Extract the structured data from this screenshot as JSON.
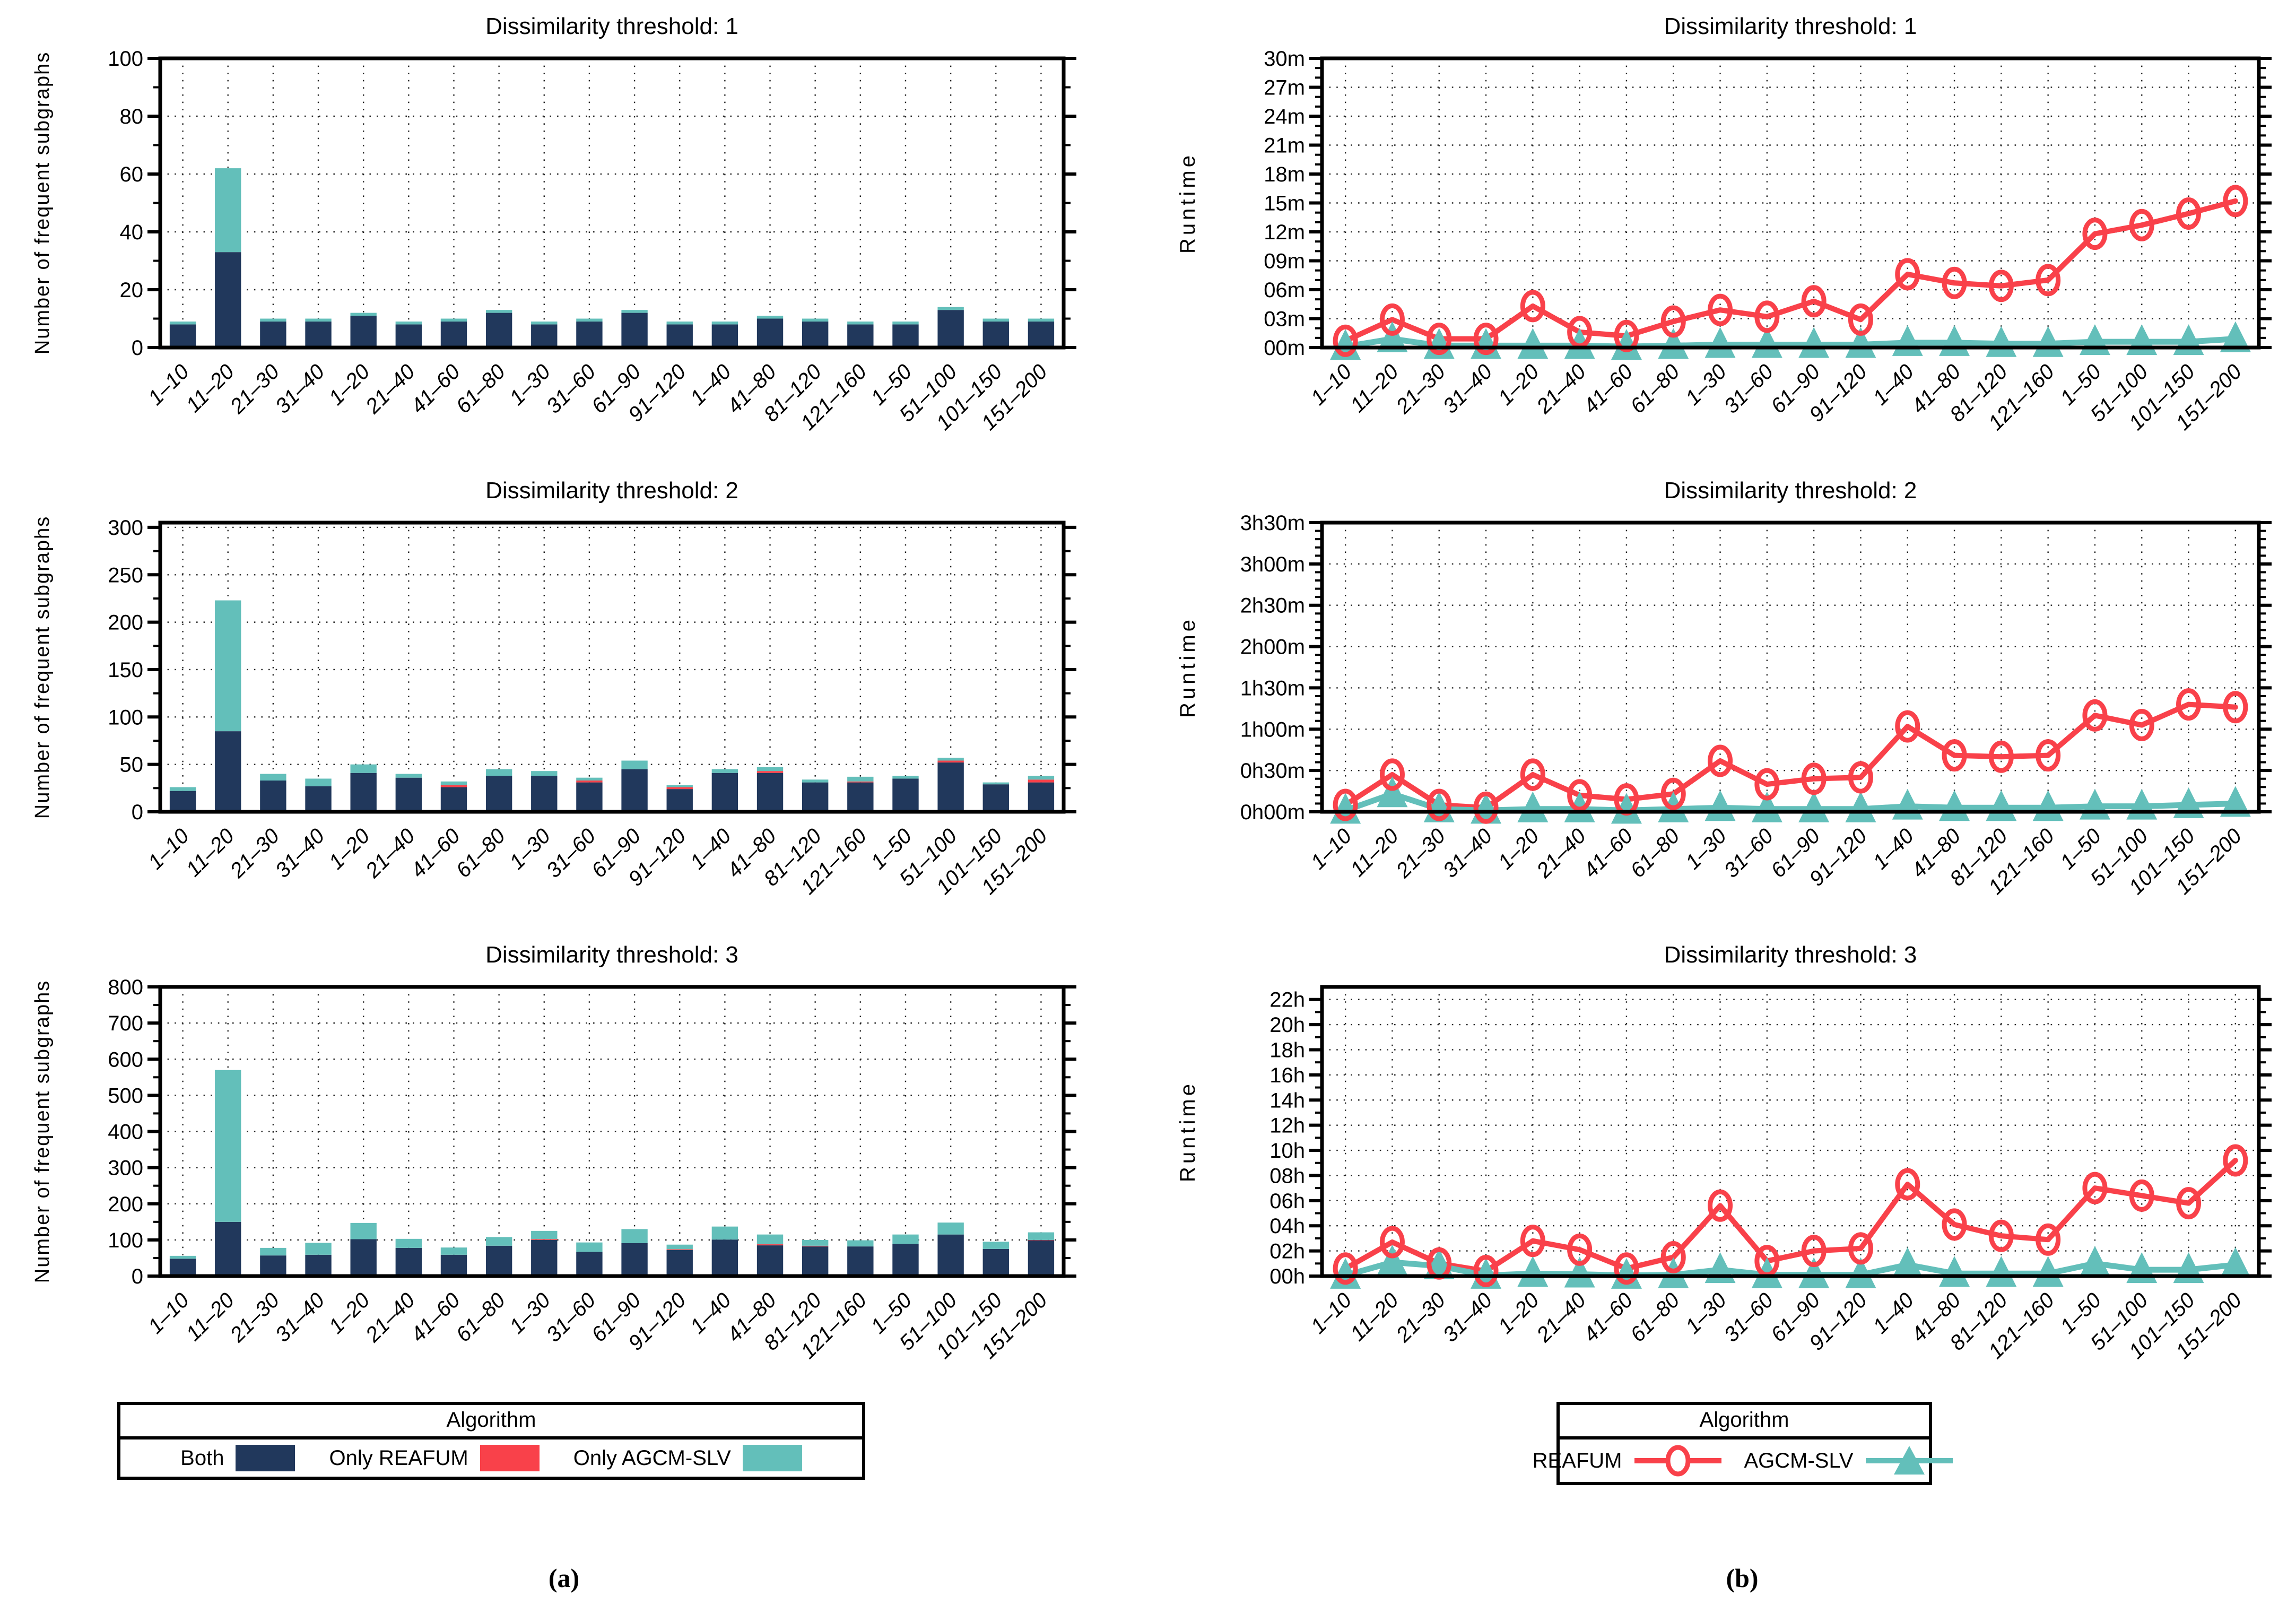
{
  "figure": {
    "panel_a_label": "(a)",
    "panel_b_label": "(b)"
  },
  "colors": {
    "both": "#21385c",
    "only_reafum": "#f9414a",
    "only_agcm_slv": "#63bfba",
    "axis": "#000000"
  },
  "legend_a": {
    "title": "Algorithm",
    "items": [
      {
        "label": "Both",
        "color": "#21385c"
      },
      {
        "label": "Only REAFUM",
        "color": "#f9414a"
      },
      {
        "label": "Only AGCM-SLV",
        "color": "#63bfba"
      }
    ]
  },
  "legend_b": {
    "title": "Algorithm",
    "items": [
      {
        "label": "REAFUM",
        "color": "#f9414a",
        "marker": "circle"
      },
      {
        "label": "AGCM-SLV",
        "color": "#63bfba",
        "marker": "triangle"
      }
    ]
  },
  "chart_data": [
    {
      "type": "stacked-bar",
      "title": "Dissimilarity threshold: 1",
      "ylabel": "Number of frequent subgraphs",
      "ylim": [
        0,
        100
      ],
      "yticks": [
        0,
        20,
        40,
        60,
        80,
        100
      ],
      "ytick_labels": [
        "0",
        "20",
        "40",
        "60",
        "80",
        "100"
      ],
      "yminor": 10,
      "grid": true,
      "categories": [
        "1–10",
        "11–20",
        "21–30",
        "31–40",
        "1–20",
        "21–40",
        "41–60",
        "61–80",
        "1–30",
        "31–60",
        "61–90",
        "91–120",
        "1–40",
        "41–80",
        "81–120",
        "121–160",
        "1–50",
        "51–100",
        "101–150",
        "151–200"
      ],
      "series": [
        {
          "name": "Both",
          "color": "#21385c",
          "values": [
            8,
            33,
            9,
            9,
            11,
            8,
            9,
            12,
            8,
            9,
            12,
            8,
            8,
            10,
            9,
            8,
            8,
            13,
            9,
            9
          ]
        },
        {
          "name": "Only REAFUM",
          "color": "#f9414a",
          "values": [
            0,
            0,
            0,
            0,
            0,
            0,
            0,
            0,
            0,
            0,
            0,
            0,
            0,
            0,
            0,
            0,
            0,
            0,
            0,
            0
          ]
        },
        {
          "name": "Only AGCM-SLV",
          "color": "#63bfba",
          "values": [
            1,
            29,
            1,
            1,
            1,
            1,
            1,
            1,
            1,
            1,
            1,
            1,
            1,
            1,
            1,
            1,
            1,
            1,
            1,
            1
          ]
        }
      ]
    },
    {
      "type": "stacked-bar",
      "title": "Dissimilarity threshold: 2",
      "ylabel": "Number of frequent subgraphs",
      "ylim": [
        0,
        305
      ],
      "yticks": [
        0,
        50,
        100,
        150,
        200,
        250,
        300
      ],
      "ytick_labels": [
        "0",
        "50",
        "100",
        "150",
        "200",
        "250",
        "300"
      ],
      "yminor": 25,
      "grid": true,
      "categories": [
        "1–10",
        "11–20",
        "21–30",
        "31–40",
        "1–20",
        "21–40",
        "41–60",
        "61–80",
        "1–30",
        "31–60",
        "61–90",
        "91–120",
        "1–40",
        "41–80",
        "81–120",
        "121–160",
        "1–50",
        "51–100",
        "101–150",
        "151–200"
      ],
      "series": [
        {
          "name": "Both",
          "color": "#21385c",
          "values": [
            22,
            85,
            33,
            27,
            41,
            36,
            26,
            38,
            38,
            31,
            45,
            24,
            41,
            41,
            31,
            31,
            35,
            52,
            29,
            31
          ]
        },
        {
          "name": "Only REAFUM",
          "color": "#f9414a",
          "values": [
            0,
            0,
            0,
            0,
            0,
            0,
            2,
            0,
            0,
            2,
            0,
            2,
            0,
            2,
            0,
            1,
            0,
            2,
            0,
            3
          ]
        },
        {
          "name": "Only AGCM-SLV",
          "color": "#63bfba",
          "values": [
            4,
            138,
            7,
            8,
            9,
            4,
            4,
            7,
            5,
            3,
            9,
            2,
            4,
            4,
            3,
            5,
            3,
            3,
            2,
            4
          ]
        }
      ]
    },
    {
      "type": "stacked-bar",
      "title": "Dissimilarity threshold: 3",
      "ylabel": "Number of frequent subgraphs",
      "ylim": [
        0,
        800
      ],
      "yticks": [
        0,
        100,
        200,
        300,
        400,
        500,
        600,
        700,
        800
      ],
      "ytick_labels": [
        "0",
        "100",
        "200",
        "300",
        "400",
        "500",
        "600",
        "700",
        "800"
      ],
      "yminor": 50,
      "grid": true,
      "categories": [
        "1–10",
        "11–20",
        "21–30",
        "31–40",
        "1–20",
        "21–40",
        "41–60",
        "61–80",
        "1–30",
        "31–60",
        "61–90",
        "91–120",
        "1–40",
        "41–80",
        "81–120",
        "121–160",
        "1–50",
        "51–100",
        "101–150",
        "151–200"
      ],
      "series": [
        {
          "name": "Both",
          "color": "#21385c",
          "values": [
            48,
            150,
            57,
            59,
            102,
            78,
            59,
            84,
            100,
            67,
            91,
            72,
            101,
            85,
            82,
            82,
            89,
            115,
            75,
            99
          ]
        },
        {
          "name": "Only REAFUM",
          "color": "#f9414a",
          "values": [
            0,
            0,
            0,
            0,
            0,
            0,
            0,
            0,
            2,
            0,
            0,
            2,
            0,
            3,
            2,
            0,
            0,
            0,
            0,
            1
          ]
        },
        {
          "name": "Only AGCM-SLV",
          "color": "#63bfba",
          "values": [
            8,
            420,
            21,
            33,
            45,
            25,
            20,
            24,
            23,
            26,
            39,
            13,
            36,
            27,
            16,
            17,
            26,
            33,
            20,
            21
          ]
        }
      ]
    },
    {
      "type": "line",
      "title": "Dissimilarity threshold: 1",
      "ylabel": "Runtime",
      "y_unit": "minutes",
      "ylim": [
        0,
        30
      ],
      "yticks": [
        0,
        3,
        6,
        9,
        12,
        15,
        18,
        21,
        24,
        27,
        30
      ],
      "ytick_labels": [
        "00m",
        "03m",
        "06m",
        "09m",
        "12m",
        "15m",
        "18m",
        "21m",
        "24m",
        "27m",
        "30m"
      ],
      "yminor": 1,
      "grid": true,
      "categories": [
        "1–10",
        "11–20",
        "21–30",
        "31–40",
        "1–20",
        "21–40",
        "41–60",
        "61–80",
        "1–30",
        "31–60",
        "61–90",
        "91–120",
        "1–40",
        "41–80",
        "81–120",
        "121–160",
        "1–50",
        "51–100",
        "101–150",
        "151–200"
      ],
      "series": [
        {
          "name": "REAFUM",
          "color": "#f9414a",
          "marker": "circle",
          "values": [
            0.7,
            2.9,
            0.9,
            0.9,
            4.3,
            1.6,
            1.2,
            2.7,
            3.9,
            3.2,
            4.8,
            2.9,
            7.6,
            6.7,
            6.4,
            7.0,
            11.8,
            12.7,
            13.9,
            15.2
          ]
        },
        {
          "name": "AGCM-SLV",
          "color": "#63bfba",
          "marker": "triangle",
          "values": [
            0.1,
            0.9,
            0.2,
            0.2,
            0.2,
            0.2,
            0.1,
            0.2,
            0.3,
            0.3,
            0.3,
            0.3,
            0.5,
            0.5,
            0.4,
            0.4,
            0.6,
            0.6,
            0.6,
            0.9
          ]
        }
      ]
    },
    {
      "type": "line",
      "title": "Dissimilarity threshold: 2",
      "ylabel": "Runtime",
      "y_unit": "minutes",
      "ylim": [
        0,
        210
      ],
      "yticks": [
        0,
        30,
        60,
        90,
        120,
        150,
        180,
        210
      ],
      "ytick_labels": [
        "0h00m",
        "0h30m",
        "1h00m",
        "1h30m",
        "2h00m",
        "2h30m",
        "3h00m",
        "3h30m"
      ],
      "yminor": 6,
      "grid": true,
      "categories": [
        "1–10",
        "11–20",
        "21–30",
        "31–40",
        "1–20",
        "21–40",
        "41–60",
        "61–80",
        "1–30",
        "31–60",
        "61–90",
        "91–120",
        "1–40",
        "41–80",
        "81–120",
        "121–160",
        "1–50",
        "51–100",
        "101–150",
        "151–200"
      ],
      "series": [
        {
          "name": "REAFUM",
          "color": "#f9414a",
          "marker": "circle",
          "values": [
            5,
            27,
            5,
            3,
            27,
            12,
            9,
            13,
            37,
            20,
            24,
            25,
            62,
            41,
            40,
            41,
            70,
            63,
            78,
            76
          ]
        },
        {
          "name": "AGCM-SLV",
          "color": "#63bfba",
          "marker": "triangle",
          "values": [
            1,
            13,
            2,
            1,
            2,
            2,
            1,
            2,
            3,
            2,
            2,
            2,
            4,
            3,
            3,
            3,
            4,
            4,
            5,
            6
          ]
        }
      ]
    },
    {
      "type": "line",
      "title": "Dissimilarity threshold: 3",
      "ylabel": "Runtime",
      "y_unit": "hours",
      "ylim": [
        0,
        23
      ],
      "yticks": [
        0,
        2,
        4,
        6,
        8,
        10,
        12,
        14,
        16,
        18,
        20,
        22
      ],
      "ytick_labels": [
        "00h",
        "02h",
        "04h",
        "06h",
        "08h",
        "10h",
        "12h",
        "14h",
        "16h",
        "18h",
        "20h",
        "22h"
      ],
      "yminor": 1,
      "grid": true,
      "categories": [
        "1–10",
        "11–20",
        "21–30",
        "31–40",
        "1–20",
        "21–40",
        "41–60",
        "61–80",
        "1–30",
        "31–60",
        "61–90",
        "91–120",
        "1–40",
        "41–80",
        "81–120",
        "121–160",
        "1–50",
        "51–100",
        "101–150",
        "151–200"
      ],
      "series": [
        {
          "name": "REAFUM",
          "color": "#f9414a",
          "marker": "circle",
          "values": [
            0.6,
            2.7,
            1.0,
            0.4,
            2.8,
            2.1,
            0.6,
            1.5,
            5.6,
            1.2,
            2.0,
            2.2,
            7.3,
            4.1,
            3.2,
            2.9,
            7.0,
            6.4,
            5.8,
            9.2
          ]
        },
        {
          "name": "AGCM-SLV",
          "color": "#63bfba",
          "marker": "triangle",
          "values": [
            0.05,
            1.1,
            0.8,
            0.05,
            0.2,
            0.15,
            0.05,
            0.1,
            0.5,
            0.1,
            0.1,
            0.1,
            0.9,
            0.2,
            0.2,
            0.2,
            1.0,
            0.5,
            0.5,
            0.9
          ]
        }
      ]
    }
  ]
}
